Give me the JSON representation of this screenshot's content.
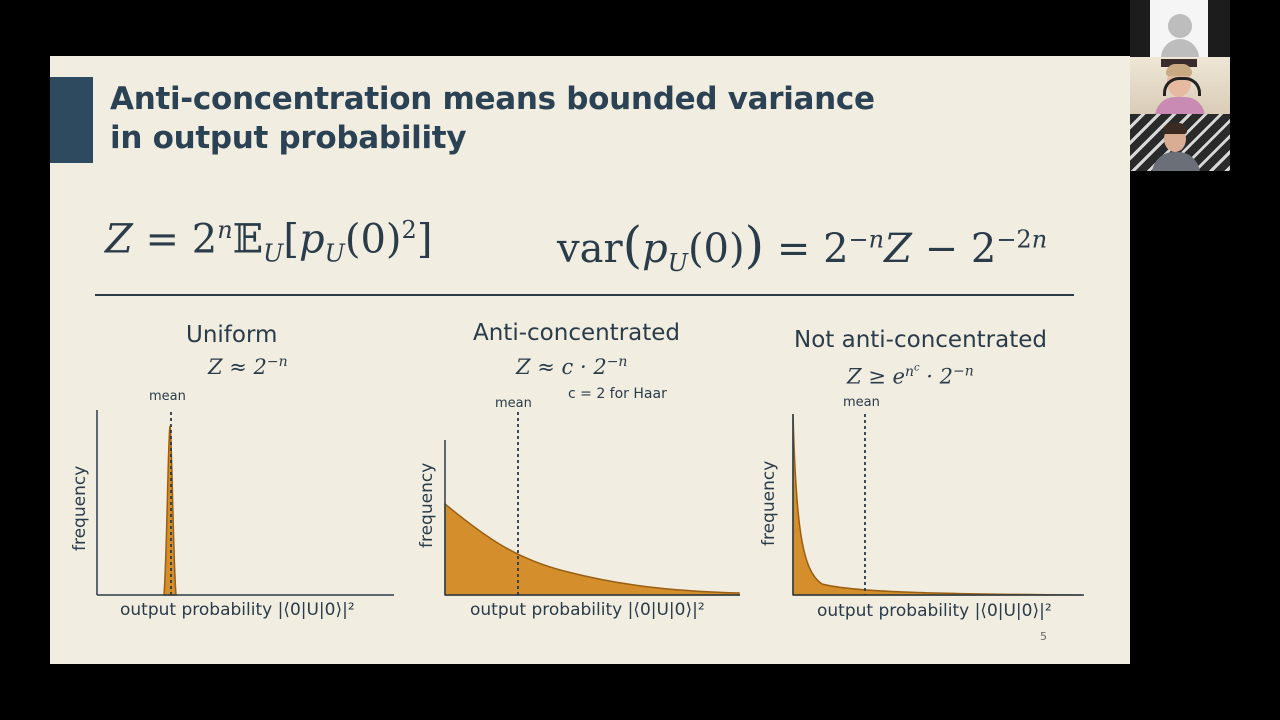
{
  "slide": {
    "title_line1": "Anti-concentration means bounded variance",
    "title_line2": "in output probability",
    "page_number": "5"
  },
  "equations": {
    "left": "Z = 2ⁿ𝔼_U[p_U(0)²]",
    "right": "var(p_U(0)) = 2⁻ⁿZ − 2⁻²ⁿ"
  },
  "panels": [
    {
      "title": "Uniform",
      "formula": "Z ≈ 2⁻ⁿ",
      "note": "",
      "mean_label": "mean",
      "ylabel": "frequency",
      "xlabel": "output probability |⟨0|U|0⟩|²"
    },
    {
      "title": "Anti-concentrated",
      "formula": "Z ≈ c · 2⁻ⁿ",
      "note": "c = 2 for Haar",
      "mean_label": "mean",
      "ylabel": "frequency",
      "xlabel": "output probability |⟨0|U|0⟩|²"
    },
    {
      "title": "Not anti-concentrated",
      "formula": "Z ≥ e^(n^c) · 2⁻ⁿ",
      "note": "",
      "mean_label": "mean",
      "ylabel": "frequency",
      "xlabel": "output probability |⟨0|U|0⟩|²"
    }
  ],
  "colors": {
    "fill": "#d48f2c",
    "stroke": "#9a5f12",
    "slide_bg": "#f1ede0",
    "title": "#2b4255",
    "accent_bar": "#2e4a5f"
  },
  "video_tiles": [
    "avatar-placeholder",
    "participant-video",
    "participant-video"
  ]
}
